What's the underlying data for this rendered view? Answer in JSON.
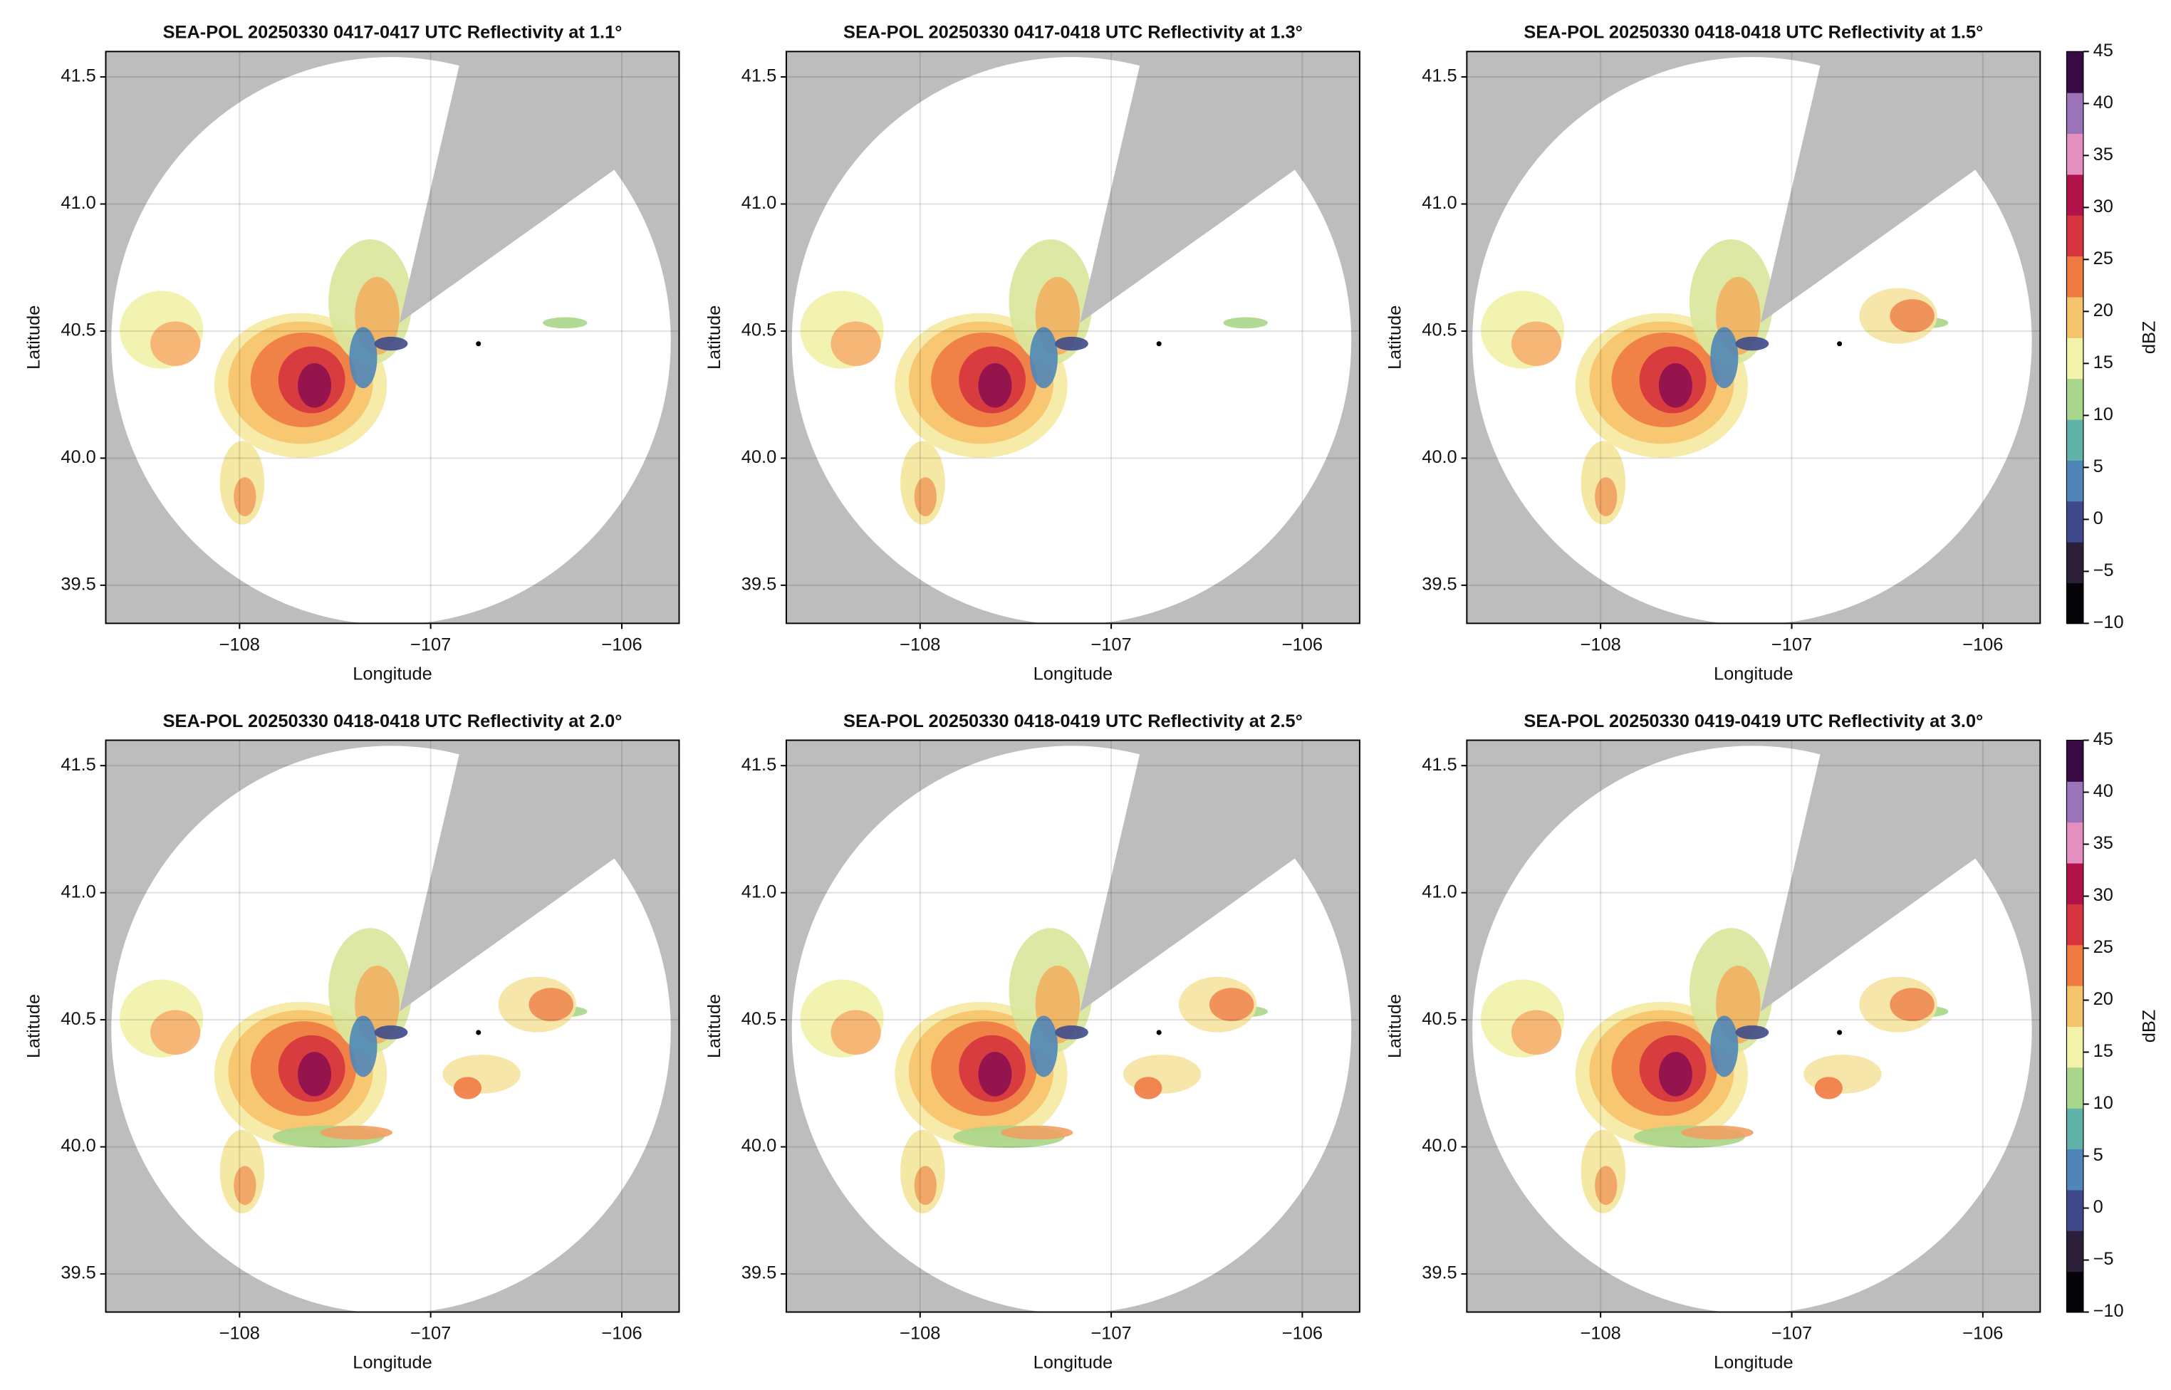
{
  "chart_data": [
    {
      "type": "radar",
      "title": "SEA-POL 20250330 0417-0417 UTC Reflectivity at 1.1°",
      "xlabel": "Longitude",
      "ylabel": "Latitude",
      "xlim": [
        -108.7,
        -105.7
      ],
      "ylim": [
        39.35,
        41.6
      ],
      "xticks": [
        {
          "value": -108,
          "label": "−108"
        },
        {
          "value": -107,
          "label": "−107"
        },
        {
          "value": -106,
          "label": "−106"
        }
      ],
      "yticks": [
        39.5,
        {
          "value": 40,
          "label": "40.0"
        },
        40.5,
        {
          "value": 41,
          "label": "41.0"
        },
        41.5
      ],
      "site": {
        "lon": -106.75,
        "lat": 40.45
      },
      "grid": true
    },
    {
      "type": "radar",
      "title": "SEA-POL 20250330 0417-0418 UTC Reflectivity at 1.3°",
      "xlabel": "Longitude",
      "ylabel": "Latitude",
      "xlim": [
        -108.7,
        -105.7
      ],
      "ylim": [
        39.35,
        41.6
      ],
      "xticks": [
        {
          "value": -108,
          "label": "−108"
        },
        {
          "value": -107,
          "label": "−107"
        },
        {
          "value": -106,
          "label": "−106"
        }
      ],
      "yticks": [
        39.5,
        {
          "value": 40,
          "label": "40.0"
        },
        40.5,
        {
          "value": 41,
          "label": "41.0"
        },
        41.5
      ],
      "site": {
        "lon": -106.75,
        "lat": 40.45
      },
      "grid": true
    },
    {
      "type": "radar",
      "title": "SEA-POL 20250330 0418-0418 UTC Reflectivity at 1.5°",
      "xlabel": "Longitude",
      "ylabel": "Latitude",
      "xlim": [
        -108.7,
        -105.7
      ],
      "ylim": [
        39.35,
        41.6
      ],
      "xticks": [
        {
          "value": -108,
          "label": "−108"
        },
        {
          "value": -107,
          "label": "−107"
        },
        {
          "value": -106,
          "label": "−106"
        }
      ],
      "yticks": [
        39.5,
        {
          "value": 40,
          "label": "40.0"
        },
        40.5,
        {
          "value": 41,
          "label": "41.0"
        },
        41.5
      ],
      "site": {
        "lon": -106.75,
        "lat": 40.45
      },
      "grid": true,
      "colorbar": {
        "label": "dBZ",
        "lim": [
          -10,
          45
        ],
        "ticks": [
          {
            "value": -10,
            "label": "−10"
          },
          {
            "value": -5,
            "label": "−5"
          },
          0,
          5,
          10,
          15,
          20,
          25,
          30,
          35,
          40,
          45
        ],
        "colors": [
          "#050308",
          "#2b1f3a",
          "#3e4a8c",
          "#4f86b8",
          "#5fb3a8",
          "#a8d68a",
          "#f2f2a8",
          "#f6c46a",
          "#ee7a42",
          "#d6343e",
          "#b0124a",
          "#e58fc0",
          "#9b73b8",
          "#3a0a45"
        ]
      }
    },
    {
      "type": "radar",
      "title": "SEA-POL 20250330 0418-0418 UTC Reflectivity at 2.0°",
      "xlabel": "Longitude",
      "ylabel": "Latitude",
      "xlim": [
        -108.7,
        -105.7
      ],
      "ylim": [
        39.35,
        41.6
      ],
      "xticks": [
        {
          "value": -108,
          "label": "−108"
        },
        {
          "value": -107,
          "label": "−107"
        },
        {
          "value": -106,
          "label": "−106"
        }
      ],
      "yticks": [
        39.5,
        {
          "value": 40,
          "label": "40.0"
        },
        40.5,
        {
          "value": 41,
          "label": "41.0"
        },
        41.5
      ],
      "site": {
        "lon": -106.75,
        "lat": 40.45
      },
      "grid": true
    },
    {
      "type": "radar",
      "title": "SEA-POL 20250330 0418-0419 UTC Reflectivity at 2.5°",
      "xlabel": "Longitude",
      "ylabel": "Latitude",
      "xlim": [
        -108.7,
        -105.7
      ],
      "ylim": [
        39.35,
        41.6
      ],
      "xticks": [
        {
          "value": -108,
          "label": "−108"
        },
        {
          "value": -107,
          "label": "−107"
        },
        {
          "value": -106,
          "label": "−106"
        }
      ],
      "yticks": [
        39.5,
        {
          "value": 40,
          "label": "40.0"
        },
        40.5,
        {
          "value": 41,
          "label": "41.0"
        },
        41.5
      ],
      "site": {
        "lon": -106.75,
        "lat": 40.45
      },
      "grid": true
    },
    {
      "type": "radar",
      "title": "SEA-POL 20250330 0419-0419 UTC Reflectivity at 3.0°",
      "xlabel": "Longitude",
      "ylabel": "Latitude",
      "xlim": [
        -108.7,
        -105.7
      ],
      "ylim": [
        39.35,
        41.6
      ],
      "xticks": [
        {
          "value": -108,
          "label": "−108"
        },
        {
          "value": -107,
          "label": "−107"
        },
        {
          "value": -106,
          "label": "−106"
        }
      ],
      "yticks": [
        39.5,
        {
          "value": 40,
          "label": "40.0"
        },
        40.5,
        {
          "value": 41,
          "label": "41.0"
        },
        41.5
      ],
      "site": {
        "lon": -106.75,
        "lat": 40.45
      },
      "grid": true,
      "colorbar": {
        "label": "dBZ",
        "lim": [
          -10,
          45
        ],
        "ticks": [
          {
            "value": -10,
            "label": "−10"
          },
          {
            "value": -5,
            "label": "−5"
          },
          0,
          5,
          10,
          15,
          20,
          25,
          30,
          35,
          40,
          45
        ],
        "colors": [
          "#050308",
          "#2b1f3a",
          "#3e4a8c",
          "#4f86b8",
          "#5fb3a8",
          "#a8d68a",
          "#f2f2a8",
          "#f6c46a",
          "#ee7a42",
          "#d6343e",
          "#b0124a",
          "#e58fc0",
          "#9b73b8",
          "#3a0a45"
        ]
      }
    }
  ]
}
